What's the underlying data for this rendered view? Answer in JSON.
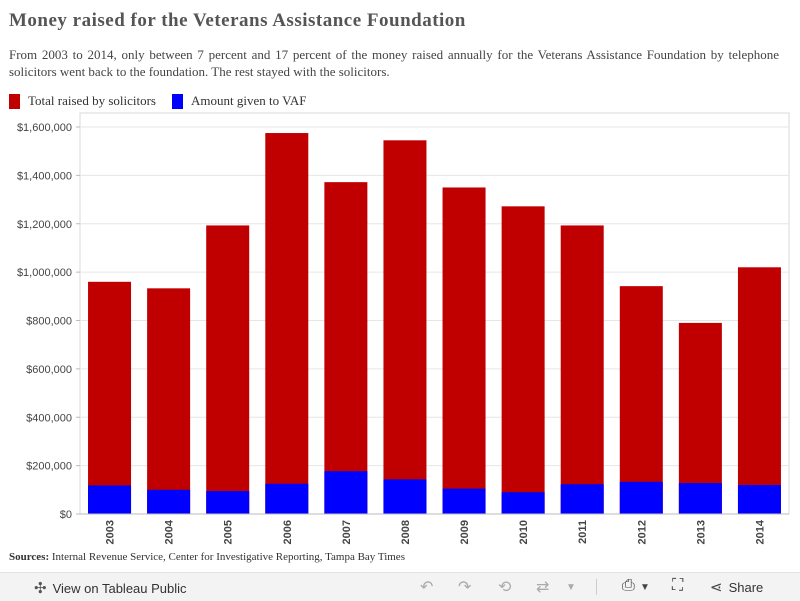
{
  "header": {
    "title": "Money raised for the Veterans Assistance Foundation",
    "subtitle": "From 2003 to 2014, only between 7 percent and 17 percent of the money raised annually for the Veterans Assistance Foundation by telephone solicitors went back to the foundation. The rest stayed with the solicitors."
  },
  "legend": {
    "items": [
      {
        "label": "Total raised by solicitors",
        "color": "#c00000"
      },
      {
        "label": "Amount given to VAF",
        "color": "#0000ff"
      }
    ]
  },
  "chart_data": {
    "type": "bar",
    "stacked": true,
    "title": "Money raised for the Veterans Assistance Foundation",
    "xlabel": "",
    "ylabel": "",
    "categories": [
      "2003",
      "2004",
      "2005",
      "2006",
      "2007",
      "2008",
      "2009",
      "2010",
      "2011",
      "2012",
      "2013",
      "2014"
    ],
    "series": [
      {
        "name": "Total raised by solicitors",
        "color": "#c00000",
        "values": [
          960000,
          933000,
          1193000,
          1575000,
          1372000,
          1545000,
          1350000,
          1272000,
          1193000,
          942000,
          790000,
          1020000
        ]
      },
      {
        "name": "Amount given to VAF",
        "color": "#0000ff",
        "values": [
          118000,
          100000,
          95000,
          125000,
          177000,
          143000,
          105000,
          90000,
          123000,
          133000,
          128000,
          120000
        ]
      }
    ],
    "ylim": [
      0,
      1600000
    ],
    "yticks": [
      0,
      200000,
      400000,
      600000,
      800000,
      1000000,
      1200000,
      1400000,
      1600000
    ],
    "ytick_labels": [
      "$0",
      "$200,000",
      "$400,000",
      "$600,000",
      "$800,000",
      "$1,000,000",
      "$1,200,000",
      "$1,400,000",
      "$1,600,000"
    ],
    "grid": true
  },
  "footer": {
    "sources_label": "Sources:",
    "sources_text": "Internal Revenue Service, Center for Investigative Reporting, Tampa Bay Times"
  },
  "toolbar": {
    "view_label": "View on Tableau Public",
    "share_label": "Share"
  }
}
